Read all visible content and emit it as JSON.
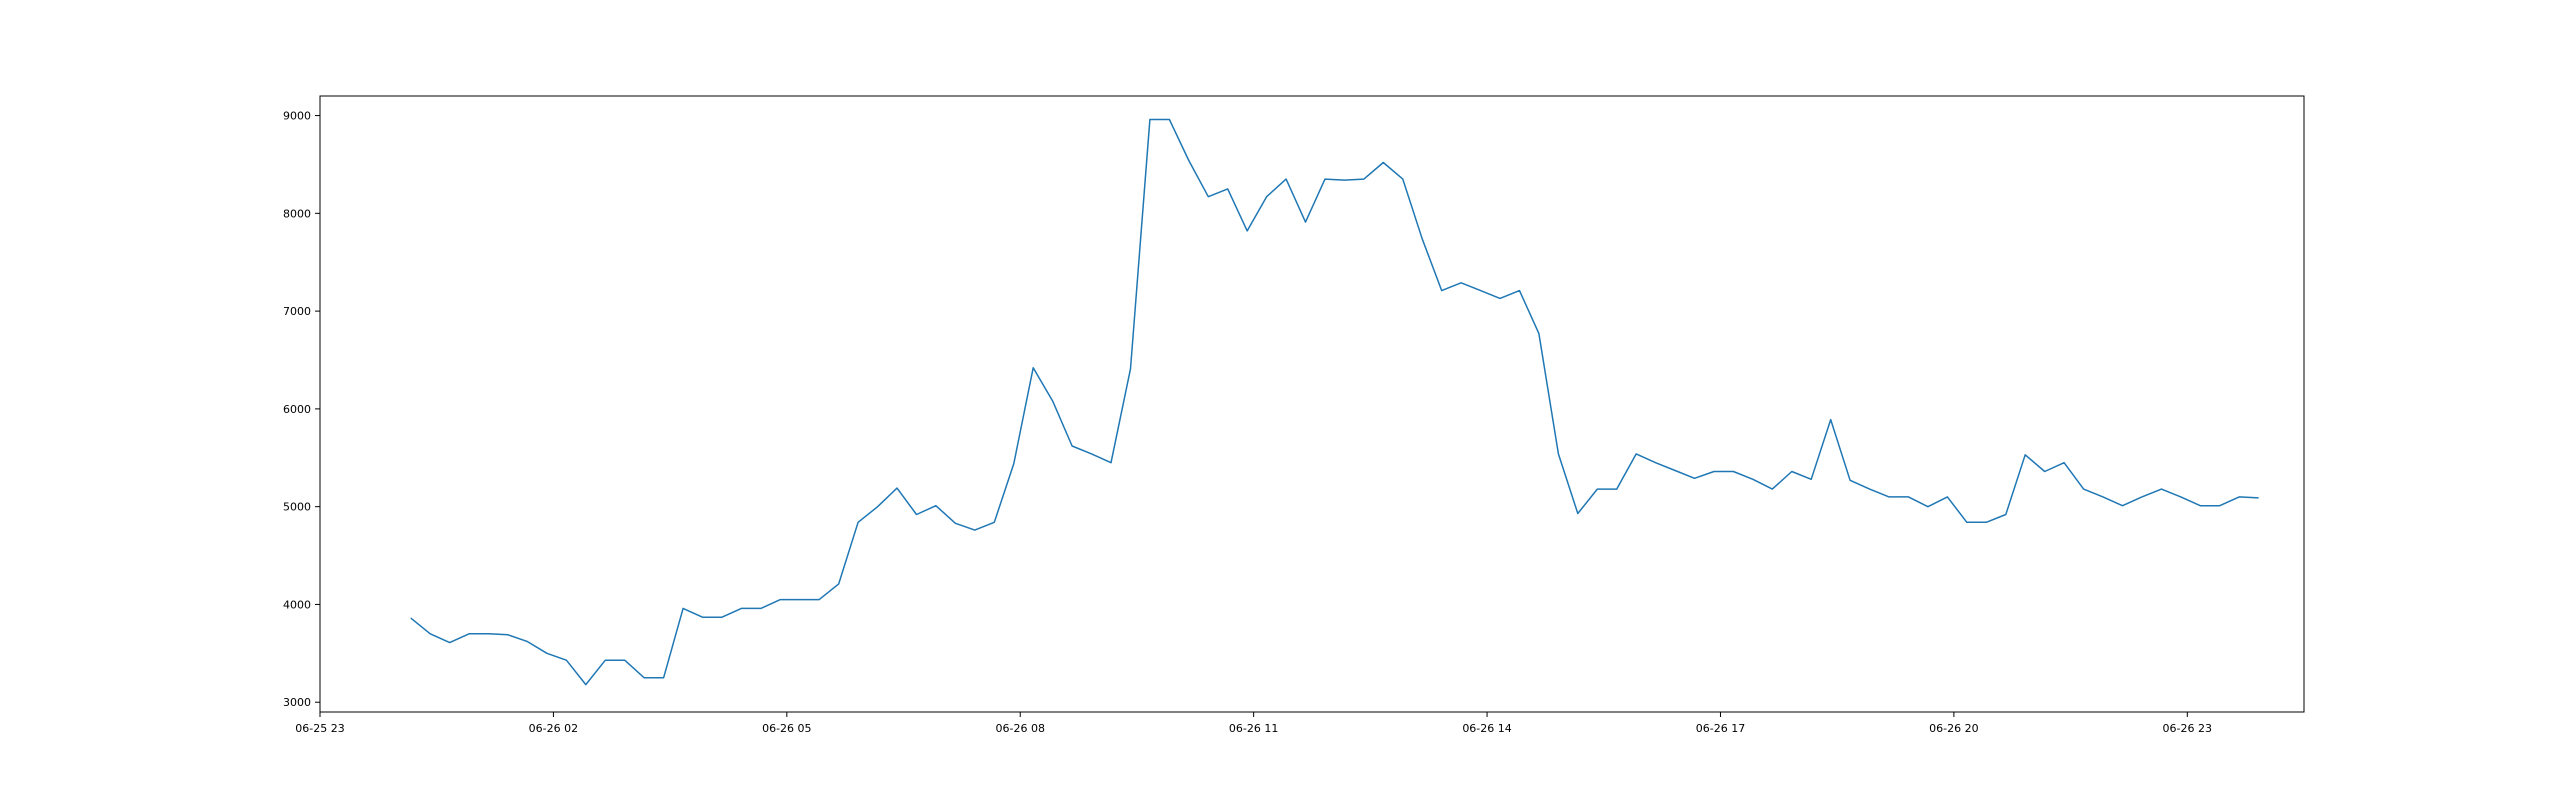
{
  "chart_data": {
    "type": "line",
    "title": "",
    "xlabel": "",
    "ylabel": "",
    "x_ticks": [
      "06-25 23",
      "06-26 02",
      "06-26 05",
      "06-26 08",
      "06-26 11",
      "06-26 14",
      "06-26 17",
      "06-26 20",
      "06-26 23"
    ],
    "y_ticks": [
      3000,
      4000,
      5000,
      6000,
      7000,
      8000,
      9000
    ],
    "xlim": [
      "2023-06-25 23:00",
      "2023-06-27 00:30"
    ],
    "ylim": [
      2900,
      9200
    ],
    "grid": false,
    "legend": "none",
    "series": [
      {
        "color": "#1f77b4",
        "x": [
          "2023-06-26 00:10",
          "2023-06-26 00:25",
          "2023-06-26 00:40",
          "2023-06-26 00:55",
          "2023-06-26 01:10",
          "2023-06-26 01:25",
          "2023-06-26 01:40",
          "2023-06-26 01:55",
          "2023-06-26 02:10",
          "2023-06-26 02:25",
          "2023-06-26 02:40",
          "2023-06-26 02:55",
          "2023-06-26 03:10",
          "2023-06-26 03:25",
          "2023-06-26 03:40",
          "2023-06-26 03:55",
          "2023-06-26 04:10",
          "2023-06-26 04:25",
          "2023-06-26 04:40",
          "2023-06-26 04:55",
          "2023-06-26 05:10",
          "2023-06-26 05:25",
          "2023-06-26 05:40",
          "2023-06-26 05:55",
          "2023-06-26 06:10",
          "2023-06-26 06:25",
          "2023-06-26 06:40",
          "2023-06-26 06:55",
          "2023-06-26 07:10",
          "2023-06-26 07:25",
          "2023-06-26 07:40",
          "2023-06-26 07:55",
          "2023-06-26 08:10",
          "2023-06-26 08:25",
          "2023-06-26 08:40",
          "2023-06-26 08:55",
          "2023-06-26 09:10",
          "2023-06-26 09:25",
          "2023-06-26 09:40",
          "2023-06-26 09:55",
          "2023-06-26 10:10",
          "2023-06-26 10:25",
          "2023-06-26 10:40",
          "2023-06-26 10:55",
          "2023-06-26 11:10",
          "2023-06-26 11:25",
          "2023-06-26 11:40",
          "2023-06-26 11:55",
          "2023-06-26 12:10",
          "2023-06-26 12:25",
          "2023-06-26 12:40",
          "2023-06-26 12:55",
          "2023-06-26 13:10",
          "2023-06-26 13:25",
          "2023-06-26 13:40",
          "2023-06-26 13:55",
          "2023-06-26 14:10",
          "2023-06-26 14:25",
          "2023-06-26 14:40",
          "2023-06-26 14:55",
          "2023-06-26 15:10",
          "2023-06-26 15:25",
          "2023-06-26 15:40",
          "2023-06-26 15:55",
          "2023-06-26 16:10",
          "2023-06-26 16:25",
          "2023-06-26 16:40",
          "2023-06-26 16:55",
          "2023-06-26 17:10",
          "2023-06-26 17:25",
          "2023-06-26 17:40",
          "2023-06-26 17:55",
          "2023-06-26 18:10",
          "2023-06-26 18:25",
          "2023-06-26 18:40",
          "2023-06-26 18:55",
          "2023-06-26 19:10",
          "2023-06-26 19:25",
          "2023-06-26 19:40",
          "2023-06-26 19:55",
          "2023-06-26 20:10",
          "2023-06-26 20:25",
          "2023-06-26 20:40",
          "2023-06-26 20:55",
          "2023-06-26 21:10",
          "2023-06-26 21:25",
          "2023-06-26 21:40",
          "2023-06-26 21:55",
          "2023-06-26 22:10",
          "2023-06-26 22:25",
          "2023-06-26 22:40",
          "2023-06-26 22:55",
          "2023-06-26 23:10",
          "2023-06-26 23:25",
          "2023-06-26 23:40",
          "2023-06-26 23:55"
        ],
        "values": [
          3860,
          3700,
          3610,
          3700,
          3700,
          3690,
          3620,
          3500,
          3430,
          3180,
          3430,
          3430,
          3250,
          3250,
          3960,
          3870,
          3870,
          3960,
          3960,
          4050,
          4050,
          4050,
          4210,
          4840,
          5000,
          5190,
          4920,
          5010,
          4830,
          4760,
          4840,
          5440,
          6420,
          6080,
          5620,
          5540,
          5450,
          6410,
          8960,
          8960,
          8540,
          8170,
          8250,
          7820,
          8170,
          8350,
          7910,
          8350,
          8340,
          8350,
          8520,
          8350,
          7740,
          7210,
          7290,
          7210,
          7130,
          7210,
          6770,
          5540,
          4930,
          5180,
          5180,
          5540,
          5450,
          5370,
          5290,
          5360,
          5360,
          5280,
          5180,
          5360,
          5280,
          5890,
          5270,
          5180,
          5100,
          5100,
          5000,
          5100,
          4840,
          4840,
          4920,
          5530,
          5360,
          5450,
          5180,
          5100,
          5010,
          5100,
          5180,
          5100,
          5010,
          5010,
          5100,
          5090
        ]
      }
    ]
  }
}
